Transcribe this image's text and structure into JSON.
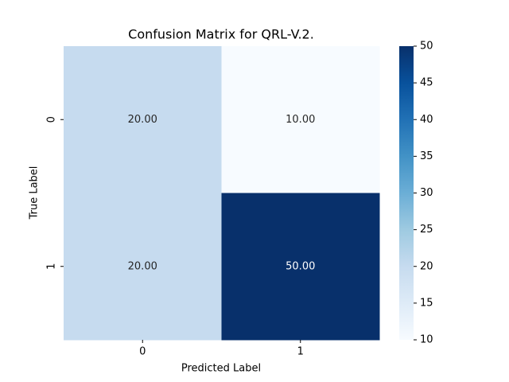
{
  "chart_data": {
    "type": "heatmap",
    "title": "Confusion Matrix for QRL-V.2.",
    "x_label": "Predicted Label",
    "y_label": "True Label",
    "x_categories": [
      "0",
      "1"
    ],
    "y_categories": [
      "0",
      "1"
    ],
    "values": [
      [
        20,
        10
      ],
      [
        20,
        50
      ]
    ],
    "value_labels": [
      [
        "20.00",
        "10.00"
      ],
      [
        "20.00",
        "50.00"
      ]
    ],
    "colormap": "Blues",
    "clim": [
      10,
      50
    ],
    "cticks": [
      10,
      15,
      20,
      25,
      30,
      35,
      40,
      45,
      50
    ]
  }
}
